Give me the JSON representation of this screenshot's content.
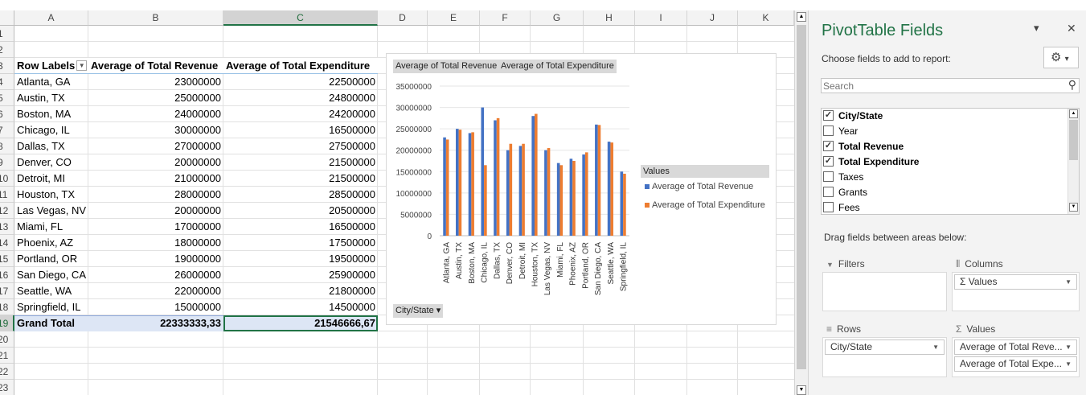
{
  "columns": [
    "A",
    "B",
    "C",
    "D",
    "E",
    "F",
    "G",
    "H",
    "I",
    "J",
    "K"
  ],
  "rows": [
    "1",
    "2",
    "3",
    "4",
    "5",
    "6",
    "7",
    "8",
    "9",
    "10",
    "11",
    "12",
    "13",
    "14",
    "15",
    "16",
    "17",
    "18",
    "19",
    "20",
    "21",
    "22",
    "23"
  ],
  "pivot": {
    "headers": [
      "Row Labels",
      "Average of Total Revenue",
      "Average of Total Expenditure"
    ],
    "data": [
      [
        "Atlanta, GA",
        "23000000",
        "22500000"
      ],
      [
        "Austin, TX",
        "25000000",
        "24800000"
      ],
      [
        "Boston, MA",
        "24000000",
        "24200000"
      ],
      [
        "Chicago, IL",
        "30000000",
        "16500000"
      ],
      [
        "Dallas, TX",
        "27000000",
        "27500000"
      ],
      [
        "Denver, CO",
        "20000000",
        "21500000"
      ],
      [
        "Detroit, MI",
        "21000000",
        "21500000"
      ],
      [
        "Houston, TX",
        "28000000",
        "28500000"
      ],
      [
        "Las Vegas, NV",
        "20000000",
        "20500000"
      ],
      [
        "Miami, FL",
        "17000000",
        "16500000"
      ],
      [
        "Phoenix, AZ",
        "18000000",
        "17500000"
      ],
      [
        "Portland, OR",
        "19000000",
        "19500000"
      ],
      [
        "San Diego, CA",
        "26000000",
        "25900000"
      ],
      [
        "Seattle, WA",
        "22000000",
        "21800000"
      ],
      [
        "Springfield, IL",
        "15000000",
        "14500000"
      ]
    ],
    "total": [
      "Grand Total",
      "22333333,33",
      "21546666,67"
    ]
  },
  "chart_data": {
    "type": "bar",
    "field_buttons": [
      "Average of Total Revenue",
      "Average of Total Expenditure"
    ],
    "axis_button": "City/State",
    "legend_title": "Values",
    "legend_position": "right",
    "categories": [
      "Atlanta, GA",
      "Austin, TX",
      "Boston, MA",
      "Chicago, IL",
      "Dallas, TX",
      "Denver, CO",
      "Detroit, MI",
      "Houston, TX",
      "Las Vegas, NV",
      "Miami, FL",
      "Phoenix, AZ",
      "Portland, OR",
      "San Diego, CA",
      "Seattle, WA",
      "Springfield, IL"
    ],
    "series": [
      {
        "name": "Average of Total Revenue",
        "color": "#4472c4",
        "values": [
          23000000,
          25000000,
          24000000,
          30000000,
          27000000,
          20000000,
          21000000,
          28000000,
          20000000,
          17000000,
          18000000,
          19000000,
          26000000,
          22000000,
          15000000
        ]
      },
      {
        "name": "Average of Total Expenditure",
        "color": "#ed7d31",
        "values": [
          22500000,
          24800000,
          24200000,
          16500000,
          27500000,
          21500000,
          21500000,
          28500000,
          20500000,
          16500000,
          17500000,
          19500000,
          25900000,
          21800000,
          14500000
        ]
      }
    ],
    "yticks": [
      "0",
      "5000000",
      "10000000",
      "15000000",
      "20000000",
      "25000000",
      "30000000",
      "35000000"
    ],
    "ylim": [
      0,
      35000000
    ],
    "grid": true
  },
  "panel": {
    "title": "PivotTable Fields",
    "subtitle": "Choose fields to add to report:",
    "search_placeholder": "Search",
    "fields": [
      {
        "label": "City/State",
        "checked": true
      },
      {
        "label": "Year",
        "checked": false
      },
      {
        "label": "Total Revenue",
        "checked": true
      },
      {
        "label": "Total Expenditure",
        "checked": true
      },
      {
        "label": "Taxes",
        "checked": false
      },
      {
        "label": "Grants",
        "checked": false
      },
      {
        "label": "Fees",
        "checked": false
      }
    ],
    "drag_label": "Drag fields between areas below:",
    "filters_label": "Filters",
    "columns_label": "Columns",
    "rows_label": "Rows",
    "values_label": "Values",
    "columns_items": [
      "Σ Values"
    ],
    "rows_items": [
      "City/State"
    ],
    "values_items": [
      "Average of Total Reve...",
      "Average of Total Expe..."
    ],
    "close_glyph": "✕",
    "menu_glyph": "▾",
    "gear_glyph": "⚙",
    "search_glyph": "⚲",
    "filter_glyph": "▼",
    "columns_glyph": "⦀",
    "rows_glyph": "≡",
    "sigma_glyph": "Σ"
  }
}
